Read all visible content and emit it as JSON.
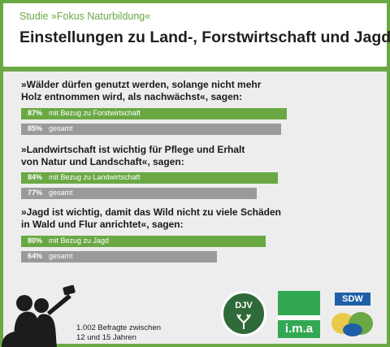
{
  "subtitle": "Studie »Fokus Naturbildung«",
  "title": "Einstellungen zu Land-, Forstwirtschaft und Jagd",
  "questions": [
    {
      "line1": "»Wälder dürfen genutzt werden, solange nicht mehr",
      "line2": "Holz entnommen wird, als nachwächst«, sagen:"
    },
    {
      "line1": "»Landwirtschaft ist wichtig für Pflege und Erhalt",
      "line2": "von Natur und Landschaft«, sagen:"
    },
    {
      "line1": "»Jagd ist wichtig, damit das Wild nicht zu viele Schäden",
      "line2": "in Wald und Flur anrichtet«, sagen:"
    }
  ],
  "chart_data": {
    "type": "bar",
    "orientation": "horizontal",
    "xlim": [
      0,
      100
    ],
    "groups": [
      {
        "bars": [
          {
            "pct_label": "87%",
            "label": "mit Bezug zu Forstwirtschaft",
            "value": 87,
            "color": "#6aa844"
          },
          {
            "pct_label": "85%",
            "label": "gesamt",
            "value": 85,
            "color": "#9a9a9a"
          }
        ]
      },
      {
        "bars": [
          {
            "pct_label": "84%",
            "label": "mit Bezug zu Landwirtschaft",
            "value": 84,
            "color": "#6aa844"
          },
          {
            "pct_label": "77%",
            "label": "gesamt",
            "value": 77,
            "color": "#9a9a9a"
          }
        ]
      },
      {
        "bars": [
          {
            "pct_label": "80%",
            "label": "mit Bezug zu Jagd",
            "value": 80,
            "color": "#6aa844"
          },
          {
            "pct_label": "64%",
            "label": "gesamt",
            "value": 64,
            "color": "#9a9a9a"
          }
        ]
      }
    ]
  },
  "footnote": {
    "line1": "1.002 Befragte zwischen",
    "line2": "12 und 15 Jahren"
  },
  "logos": {
    "djv": "DJV",
    "ima": "i.m.a",
    "sdw": "SDW"
  },
  "colors": {
    "green": "#6aa844",
    "gray": "#9a9a9a",
    "panel": "#ededed"
  },
  "icons": [
    "selfie-silhouette-icon",
    "deer-antler-icon",
    "trees-icon"
  ]
}
